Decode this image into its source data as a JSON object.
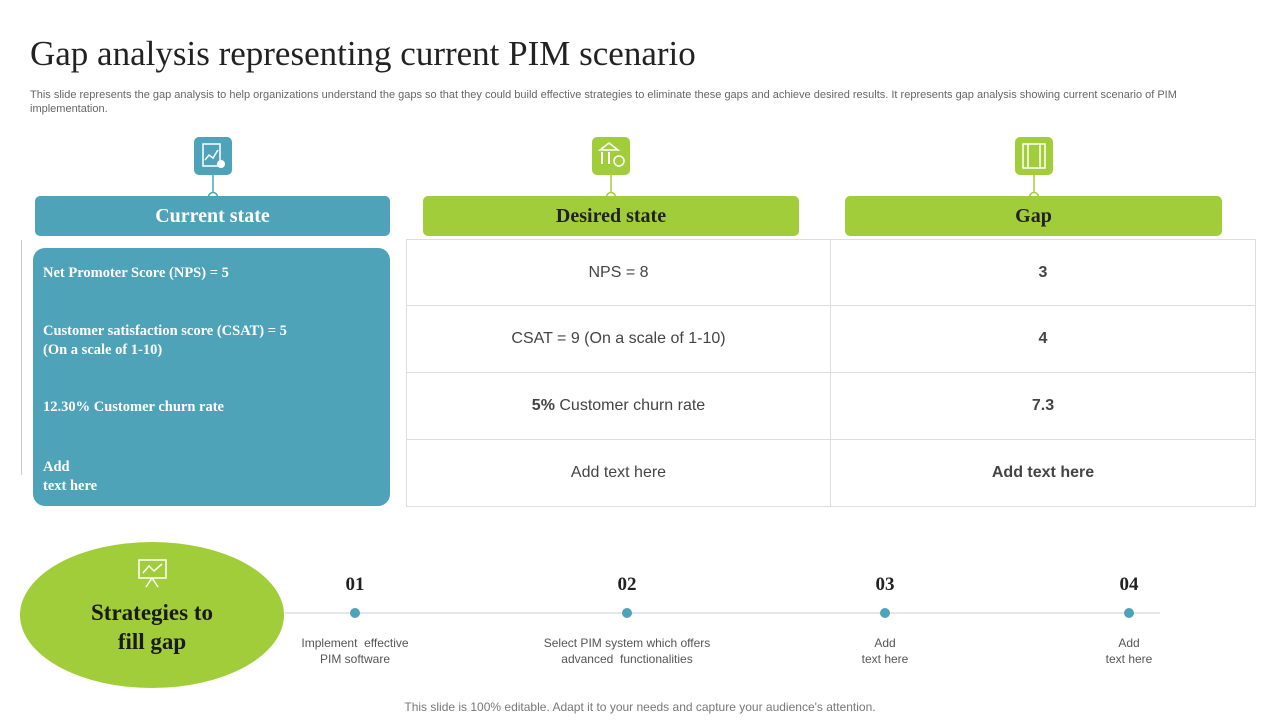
{
  "title": "Gap analysis representing current PIM scenario",
  "subtitle": "This slide represents the gap analysis to help organizations understand the gaps so that they could build effective strategies to eliminate these gaps and achieve desired results. It represents gap analysis showing current scenario of PIM implementation.",
  "columns": [
    "Current state",
    "Desired state",
    "Gap"
  ],
  "current_state": [
    {
      "lines": [
        "Net Promoter Score (NPS) = 5"
      ]
    },
    {
      "lines": [
        "Customer satisfaction score (CSAT) = 5",
        "(On a scale of 1-10)"
      ]
    },
    {
      "lines": [
        "12.30% Customer churn rate"
      ]
    },
    {
      "lines": [
        "Add",
        "text here"
      ]
    }
  ],
  "table": {
    "rows": [
      [
        {
          "text": "NPS = 8"
        },
        {
          "text": "3"
        }
      ],
      [
        {
          "text": "CSAT = 9 (On a scale of 1-10)"
        },
        {
          "text": "4"
        }
      ],
      [
        {
          "bold": "5%",
          "text": " Customer churn rate"
        },
        {
          "text": "7.3"
        }
      ],
      [
        {
          "text": "Add text here"
        },
        {
          "text": "Add text here"
        }
      ]
    ]
  },
  "strategies": {
    "title_lines": [
      "Strategies to",
      "fill gap"
    ],
    "steps": [
      {
        "number": "01",
        "lines": [
          "Implement  effective",
          "PIM software"
        ]
      },
      {
        "number": "02",
        "lines": [
          "Select PIM system which offers",
          "advanced  functionalities"
        ]
      },
      {
        "number": "03",
        "lines": [
          "Add",
          "text here"
        ]
      },
      {
        "number": "04",
        "lines": [
          "Add",
          "text here"
        ]
      }
    ]
  },
  "footer": "This slide is 100% editable. Adapt it to your needs and capture your audience's attention."
}
